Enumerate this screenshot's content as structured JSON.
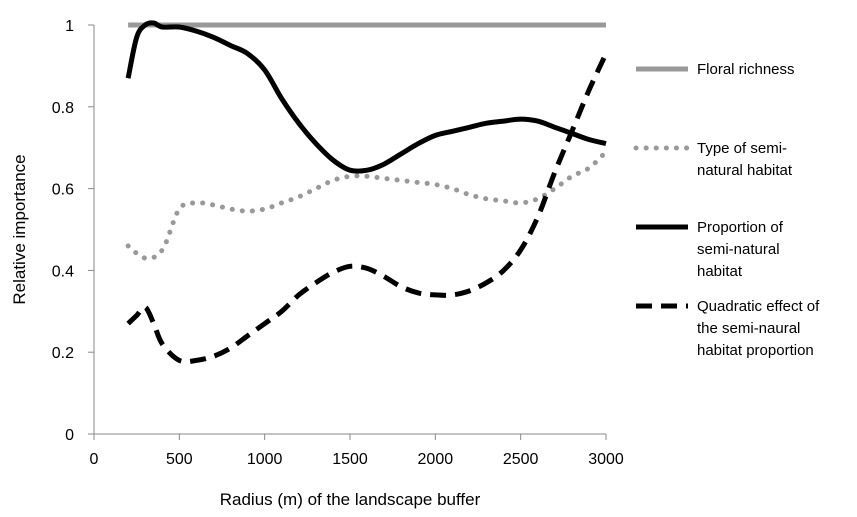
{
  "chart_data": {
    "type": "line",
    "title": "",
    "xlabel": "Radius (m) of the landscape buffer",
    "ylabel": "Relative importance",
    "xlim": [
      0,
      3000
    ],
    "ylim": [
      0,
      1.0
    ],
    "x_ticks": [
      "0",
      "500",
      "1000",
      "1500",
      "2000",
      "2500",
      "3000"
    ],
    "y_ticks": [
      "0",
      "0.2",
      "0.4",
      "0.6",
      "0.8",
      "1"
    ],
    "grid": false,
    "legend_position": "right",
    "series": [
      {
        "name": "Floral richness",
        "legend_lines": [
          "Floral richness"
        ],
        "style": "solid",
        "color": "#999999",
        "x": [
          200,
          3000
        ],
        "y": [
          1.0,
          1.0
        ]
      },
      {
        "name": "Type of semi-natural habitat",
        "legend_lines": [
          "Type of semi-",
          "natural habitat"
        ],
        "style": "dotted",
        "color": "#999999",
        "x": [
          200,
          300,
          400,
          500,
          600,
          700,
          800,
          900,
          1000,
          1100,
          1200,
          1300,
          1400,
          1500,
          1600,
          1700,
          1800,
          1900,
          2000,
          2100,
          2200,
          2300,
          2400,
          2500,
          2600,
          2700,
          2800,
          2900,
          3000
        ],
        "y": [
          0.46,
          0.43,
          0.45,
          0.55,
          0.565,
          0.56,
          0.55,
          0.545,
          0.55,
          0.565,
          0.58,
          0.6,
          0.62,
          0.63,
          0.63,
          0.625,
          0.62,
          0.615,
          0.61,
          0.6,
          0.585,
          0.575,
          0.57,
          0.565,
          0.575,
          0.6,
          0.63,
          0.65,
          0.69
        ]
      },
      {
        "name": "Proportion of semi-natural habitat",
        "legend_lines": [
          "Proportion of",
          "semi-natural",
          "habitat"
        ],
        "style": "solid",
        "color": "#000000",
        "x": [
          200,
          250,
          300,
          350,
          400,
          500,
          600,
          700,
          800,
          900,
          1000,
          1100,
          1200,
          1300,
          1400,
          1500,
          1600,
          1700,
          1800,
          1900,
          2000,
          2100,
          2200,
          2300,
          2400,
          2500,
          2600,
          2700,
          2800,
          2900,
          3000
        ],
        "y": [
          0.87,
          0.97,
          1.0,
          1.005,
          0.995,
          0.995,
          0.985,
          0.97,
          0.95,
          0.93,
          0.89,
          0.82,
          0.76,
          0.71,
          0.67,
          0.645,
          0.645,
          0.66,
          0.685,
          0.71,
          0.73,
          0.74,
          0.75,
          0.76,
          0.765,
          0.77,
          0.765,
          0.75,
          0.735,
          0.72,
          0.71
        ]
      },
      {
        "name": "Quadratic effect of the semi-naural habitat proportion",
        "legend_lines": [
          "Quadratic effect of",
          "the semi-naural",
          "habitat proportion"
        ],
        "style": "dashed",
        "color": "#000000",
        "x": [
          200,
          250,
          300,
          350,
          400,
          500,
          600,
          700,
          800,
          900,
          1000,
          1100,
          1200,
          1300,
          1400,
          1500,
          1600,
          1700,
          1800,
          1900,
          2000,
          2100,
          2200,
          2300,
          2400,
          2500,
          2600,
          2700,
          2800,
          2900,
          3000
        ],
        "y": [
          0.27,
          0.29,
          0.31,
          0.27,
          0.22,
          0.18,
          0.18,
          0.19,
          0.21,
          0.24,
          0.27,
          0.3,
          0.34,
          0.37,
          0.395,
          0.41,
          0.405,
          0.385,
          0.36,
          0.345,
          0.34,
          0.34,
          0.35,
          0.37,
          0.4,
          0.45,
          0.53,
          0.64,
          0.74,
          0.84,
          0.93
        ]
      }
    ]
  }
}
